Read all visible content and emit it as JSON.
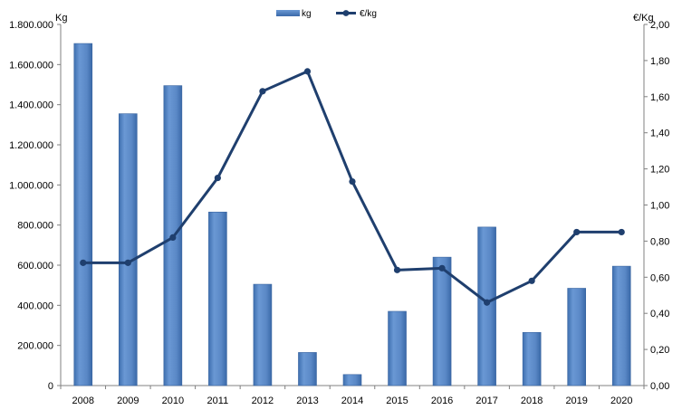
{
  "chart_data": {
    "type": "bar",
    "categories": [
      "2008",
      "2009",
      "2010",
      "2011",
      "2012",
      "2013",
      "2014",
      "2015",
      "2016",
      "2017",
      "2018",
      "2019",
      "2020"
    ],
    "series": [
      {
        "name": "kg",
        "type": "bar",
        "axis": "left",
        "color": "#4F81BD",
        "values": [
          1705000,
          1355000,
          1495000,
          865000,
          505000,
          165000,
          55000,
          370000,
          640000,
          790000,
          265000,
          485000,
          595000
        ]
      },
      {
        "name": "€/kg",
        "type": "line",
        "axis": "right",
        "color": "#1F3F6E",
        "values": [
          0.68,
          0.68,
          0.82,
          1.15,
          1.63,
          1.74,
          1.13,
          0.64,
          0.65,
          0.46,
          0.58,
          0.85,
          0.85
        ]
      }
    ],
    "y_left": {
      "unit_label": "Kg",
      "ylim": [
        0,
        1800000
      ],
      "ticks": [
        0,
        200000,
        400000,
        600000,
        800000,
        1000000,
        1200000,
        1400000,
        1600000,
        1800000
      ],
      "tick_labels": [
        "0",
        "200.000",
        "400.000",
        "600.000",
        "800.000",
        "1.000.000",
        "1.200.000",
        "1.400.000",
        "1.600.000",
        "1.800.000"
      ]
    },
    "y_right": {
      "unit_label": "€/Kg",
      "ylim": [
        0,
        2
      ],
      "ticks": [
        0,
        0.2,
        0.4,
        0.6,
        0.8,
        1.0,
        1.2,
        1.4,
        1.6,
        1.8,
        2.0
      ],
      "tick_labels": [
        "0,00",
        "0,20",
        "0,40",
        "0,60",
        "0,80",
        "1,00",
        "1,20",
        "1,40",
        "1,60",
        "1,80",
        "2,00"
      ]
    },
    "grid": false,
    "legend_position": "top-center"
  }
}
